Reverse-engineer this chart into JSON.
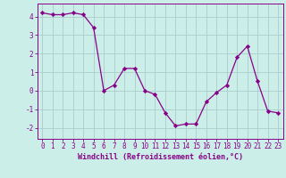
{
  "x": [
    0,
    1,
    2,
    3,
    4,
    5,
    6,
    7,
    8,
    9,
    10,
    11,
    12,
    13,
    14,
    15,
    16,
    17,
    18,
    19,
    20,
    21,
    22,
    23
  ],
  "y": [
    4.2,
    4.1,
    4.1,
    4.2,
    4.1,
    3.4,
    0.0,
    0.3,
    1.2,
    1.2,
    0.0,
    -0.2,
    -1.2,
    -1.9,
    -1.8,
    -1.8,
    -0.6,
    -0.1,
    0.3,
    1.8,
    2.4,
    0.5,
    -1.1,
    -1.2
  ],
  "line_color": "#880088",
  "marker": "D",
  "marker_size": 2.2,
  "bg_color": "#cceee8",
  "grid_color": "#aacccc",
  "xlabel": "Windchill (Refroidissement éolien,°C)",
  "xlim": [
    -0.5,
    23.5
  ],
  "ylim": [
    -2.6,
    4.7
  ],
  "yticks": [
    -2,
    -1,
    0,
    1,
    2,
    3,
    4
  ],
  "xticks": [
    0,
    1,
    2,
    3,
    4,
    5,
    6,
    7,
    8,
    9,
    10,
    11,
    12,
    13,
    14,
    15,
    16,
    17,
    18,
    19,
    20,
    21,
    22,
    23
  ],
  "tick_color": "#880088",
  "label_color": "#880088",
  "spine_color": "#880088",
  "tick_fontsize": 5.5,
  "xlabel_fontsize": 6.0
}
